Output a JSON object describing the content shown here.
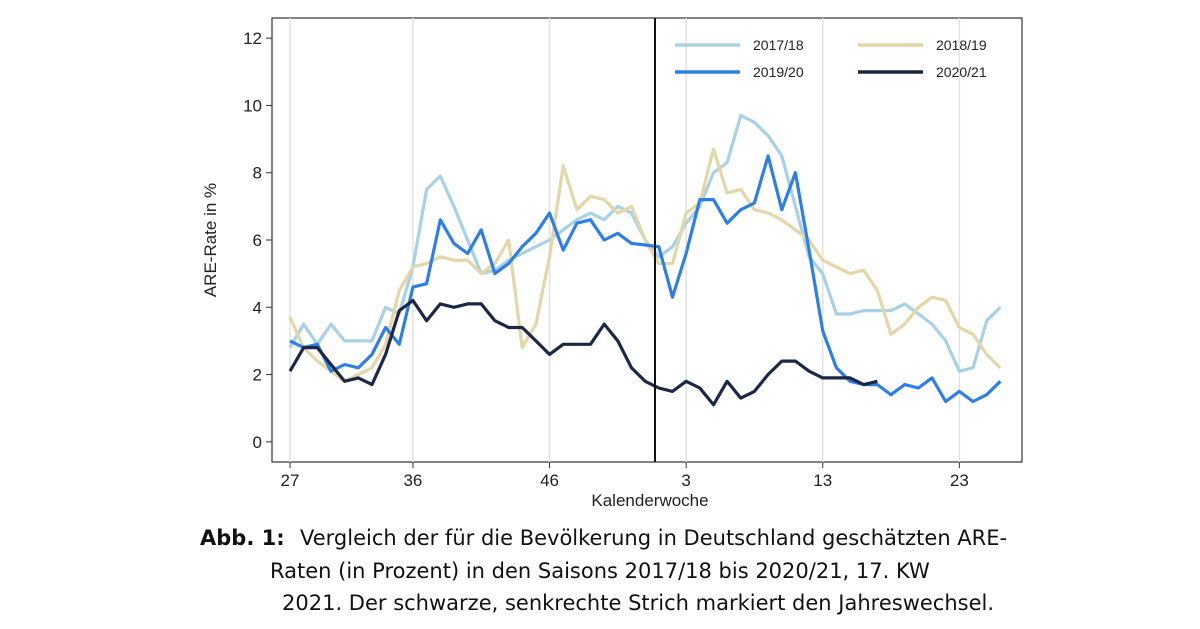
{
  "chart_data": {
    "type": "line",
    "ylabel": "ARE-Rate in %",
    "xlabel": "Kalenderwoche",
    "categories": [
      "27",
      null,
      null,
      null,
      null,
      null,
      null,
      null,
      null,
      "36",
      null,
      null,
      null,
      null,
      null,
      null,
      null,
      null,
      null,
      "46",
      null,
      null,
      null,
      null,
      null,
      null,
      null,
      null,
      null,
      "3",
      null,
      null,
      null,
      null,
      null,
      null,
      null,
      null,
      null,
      "13",
      null,
      null,
      null,
      null,
      null,
      null,
      null,
      null,
      null,
      "23",
      null,
      null,
      null
    ],
    "ylim": [
      -0.6,
      12.6
    ],
    "yticks": [
      0,
      2,
      4,
      6,
      8,
      10,
      12
    ],
    "grid": "x",
    "legend": "top-right",
    "series": [
      {
        "name": "2017/18",
        "color": "#a9d1e6",
        "values": [
          2.8,
          3.5,
          2.9,
          3.5,
          3.0,
          3.0,
          3.0,
          4.0,
          3.8,
          5.2,
          7.5,
          7.9,
          7.0,
          6.0,
          5.0,
          5.1,
          5.4,
          5.6,
          5.8,
          6.0,
          6.3,
          6.6,
          6.8,
          6.6,
          7.0,
          6.8,
          6.0,
          5.5,
          5.8,
          6.5,
          7.0,
          8.0,
          8.3,
          9.7,
          9.5,
          9.1,
          8.5,
          7.0,
          5.5,
          5.0,
          3.8,
          3.8,
          3.9,
          3.9,
          3.9,
          4.1,
          3.8,
          3.5,
          3.0,
          2.1,
          2.2,
          3.6,
          4.0
        ]
      },
      {
        "name": "2018/19",
        "color": "#e3d6a8",
        "values": [
          3.7,
          2.8,
          2.4,
          2.1,
          1.8,
          2.0,
          2.2,
          2.9,
          4.5,
          5.2,
          5.3,
          5.5,
          5.4,
          5.4,
          5.0,
          5.3,
          6.0,
          2.8,
          3.5,
          5.5,
          8.2,
          6.9,
          7.3,
          7.2,
          6.8,
          7.0,
          6.0,
          5.3,
          5.3,
          6.8,
          7.1,
          8.7,
          7.4,
          7.5,
          6.9,
          6.8,
          6.6,
          6.3,
          6.0,
          5.4,
          5.2,
          5.0,
          5.1,
          4.5,
          3.2,
          3.5,
          4.0,
          4.3,
          4.2,
          3.4,
          3.2,
          2.6,
          2.2
        ]
      },
      {
        "name": "2019/20",
        "color": "#2f7fe0",
        "values": [
          3.0,
          2.8,
          2.9,
          2.1,
          2.3,
          2.2,
          2.6,
          3.4,
          2.9,
          4.6,
          4.7,
          6.6,
          5.9,
          5.6,
          6.3,
          5.0,
          5.3,
          5.8,
          6.2,
          6.8,
          5.7,
          6.5,
          6.6,
          6.0,
          6.2,
          5.9,
          5.85,
          5.8,
          4.3,
          5.6,
          7.2,
          7.2,
          6.5,
          6.9,
          7.1,
          8.5,
          6.9,
          8.0,
          5.7,
          3.3,
          2.2,
          1.8,
          1.7,
          1.7,
          1.4,
          1.7,
          1.6,
          1.9,
          1.2,
          1.5,
          1.2,
          1.4,
          1.8
        ]
      },
      {
        "name": "2020/21",
        "color": "#1c2745",
        "values": [
          2.1,
          2.8,
          2.8,
          2.3,
          1.8,
          1.9,
          1.7,
          2.6,
          3.9,
          4.2,
          3.6,
          4.1,
          4.0,
          4.1,
          4.1,
          3.6,
          3.4,
          3.4,
          3.0,
          2.6,
          2.9,
          2.9,
          2.9,
          3.5,
          3.0,
          2.2,
          1.8,
          1.6,
          1.5,
          1.8,
          1.6,
          1.1,
          1.8,
          1.3,
          1.5,
          2.0,
          2.4,
          2.4,
          2.1,
          1.9,
          1.9,
          1.9,
          1.7,
          1.8,
          null,
          null,
          null,
          null,
          null,
          null,
          null,
          null,
          null
        ]
      }
    ]
  },
  "caption": {
    "label": "Abb. 1:",
    "lines": [
      "Vergleich der für die Bevölkerung in Deutschland geschätzten ARE-",
      "Raten (in Prozent) in den Saisons 2017/18 bis 2020/21, 17. KW",
      "2021. Der schwarze, senkrechte Strich markiert den Jahreswechsel."
    ]
  }
}
